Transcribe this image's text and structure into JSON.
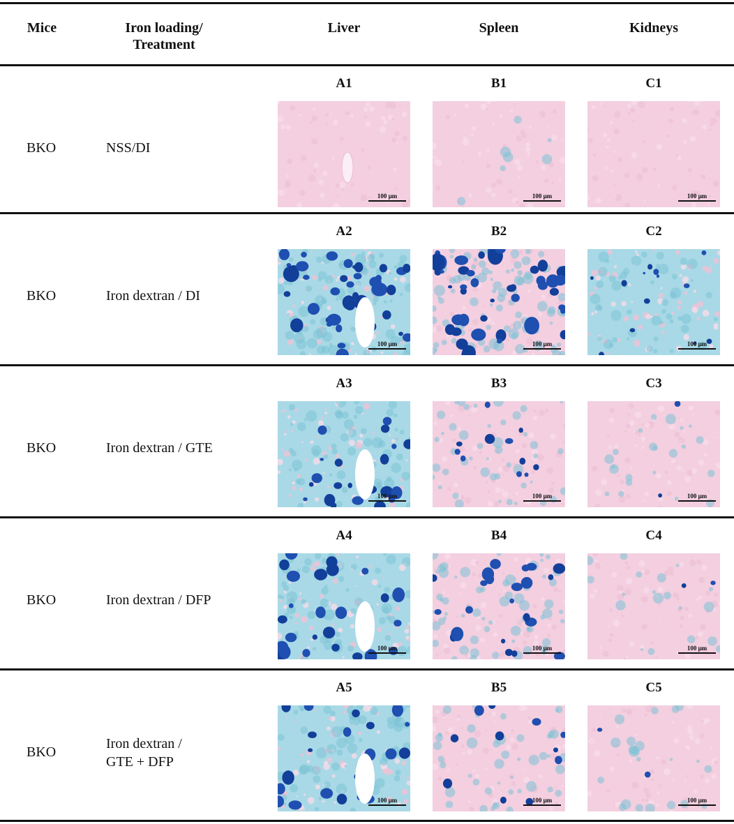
{
  "headers": {
    "mice": "Mice",
    "treatment": "Iron loading/\nTreatment",
    "liver": "Liver",
    "spleen": "Spleen",
    "kidneys": "Kidneys"
  },
  "scale_bar": "100 μm",
  "rows": [
    {
      "mice": "BKO",
      "treatment": "NSS/DI",
      "panels": [
        "A1",
        "B1",
        "C1"
      ],
      "iron_levels": [
        0.0,
        0.08,
        0.0
      ]
    },
    {
      "mice": "BKO",
      "treatment": "Iron dextran / DI",
      "panels": [
        "A2",
        "B2",
        "C2"
      ],
      "iron_levels": [
        0.95,
        1.0,
        0.55
      ]
    },
    {
      "mice": "BKO",
      "treatment": "Iron dextran / GTE",
      "panels": [
        "A3",
        "B3",
        "C3"
      ],
      "iron_levels": [
        0.7,
        0.5,
        0.25
      ]
    },
    {
      "mice": "BKO",
      "treatment": "Iron dextran / DFP",
      "panels": [
        "A4",
        "B4",
        "C4"
      ],
      "iron_levels": [
        0.75,
        0.7,
        0.22
      ]
    },
    {
      "mice": "BKO",
      "treatment": "Iron dextran /\nGTE + DFP",
      "panels": [
        "A5",
        "B5",
        "C5"
      ],
      "iron_levels": [
        0.72,
        0.5,
        0.25
      ]
    }
  ],
  "colors": {
    "tissue_pink": "#f3cfe0",
    "tissue_light_blue": "#a9d9e6",
    "iron_blue": "#1f4fb0",
    "iron_dark_blue": "#123f99",
    "rule": "#111111"
  }
}
